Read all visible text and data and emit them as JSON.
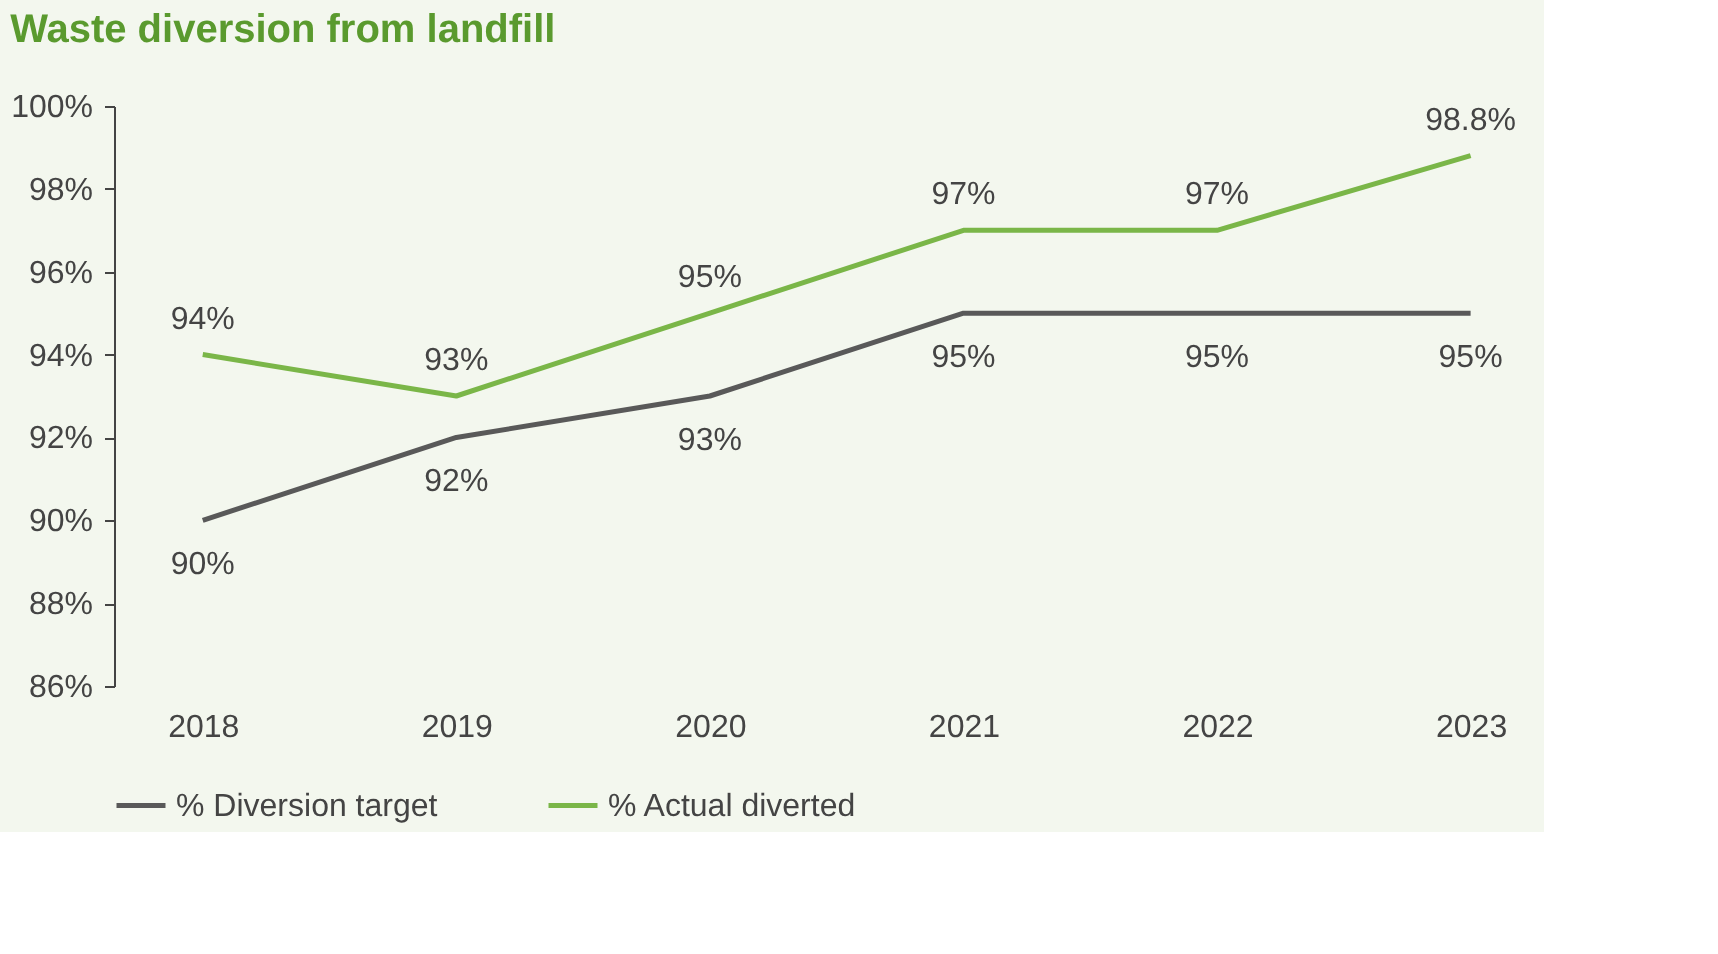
{
  "chart_data": {
    "type": "line",
    "title": "Waste diversion from landfill",
    "categories": [
      "2018",
      "2019",
      "2020",
      "2021",
      "2022",
      "2023"
    ],
    "series": [
      {
        "name": "% Diversion target",
        "color": "#595959",
        "values": [
          90,
          92,
          93,
          95,
          95,
          95
        ],
        "value_labels": [
          "90%",
          "92%",
          "93%",
          "95%",
          "95%",
          "95%"
        ]
      },
      {
        "name": "% Actual diverted",
        "color": "#7ab648",
        "values": [
          94,
          93,
          95,
          97,
          97,
          98.8
        ],
        "value_labels": [
          "94%",
          "93%",
          "95%",
          "97%",
          "97%",
          "98.8%"
        ]
      }
    ],
    "ylim": [
      86,
      100
    ],
    "yticks": [
      {
        "value": 86,
        "label": "86%"
      },
      {
        "value": 88,
        "label": "88%"
      },
      {
        "value": 90,
        "label": "90%"
      },
      {
        "value": 92,
        "label": "92%"
      },
      {
        "value": 94,
        "label": "94%"
      },
      {
        "value": 96,
        "label": "96%"
      },
      {
        "value": 98,
        "label": "98%"
      },
      {
        "value": 100,
        "label": "100%"
      }
    ],
    "grid": false,
    "legend": "bottom",
    "marker": "none",
    "line_style": "solid"
  }
}
